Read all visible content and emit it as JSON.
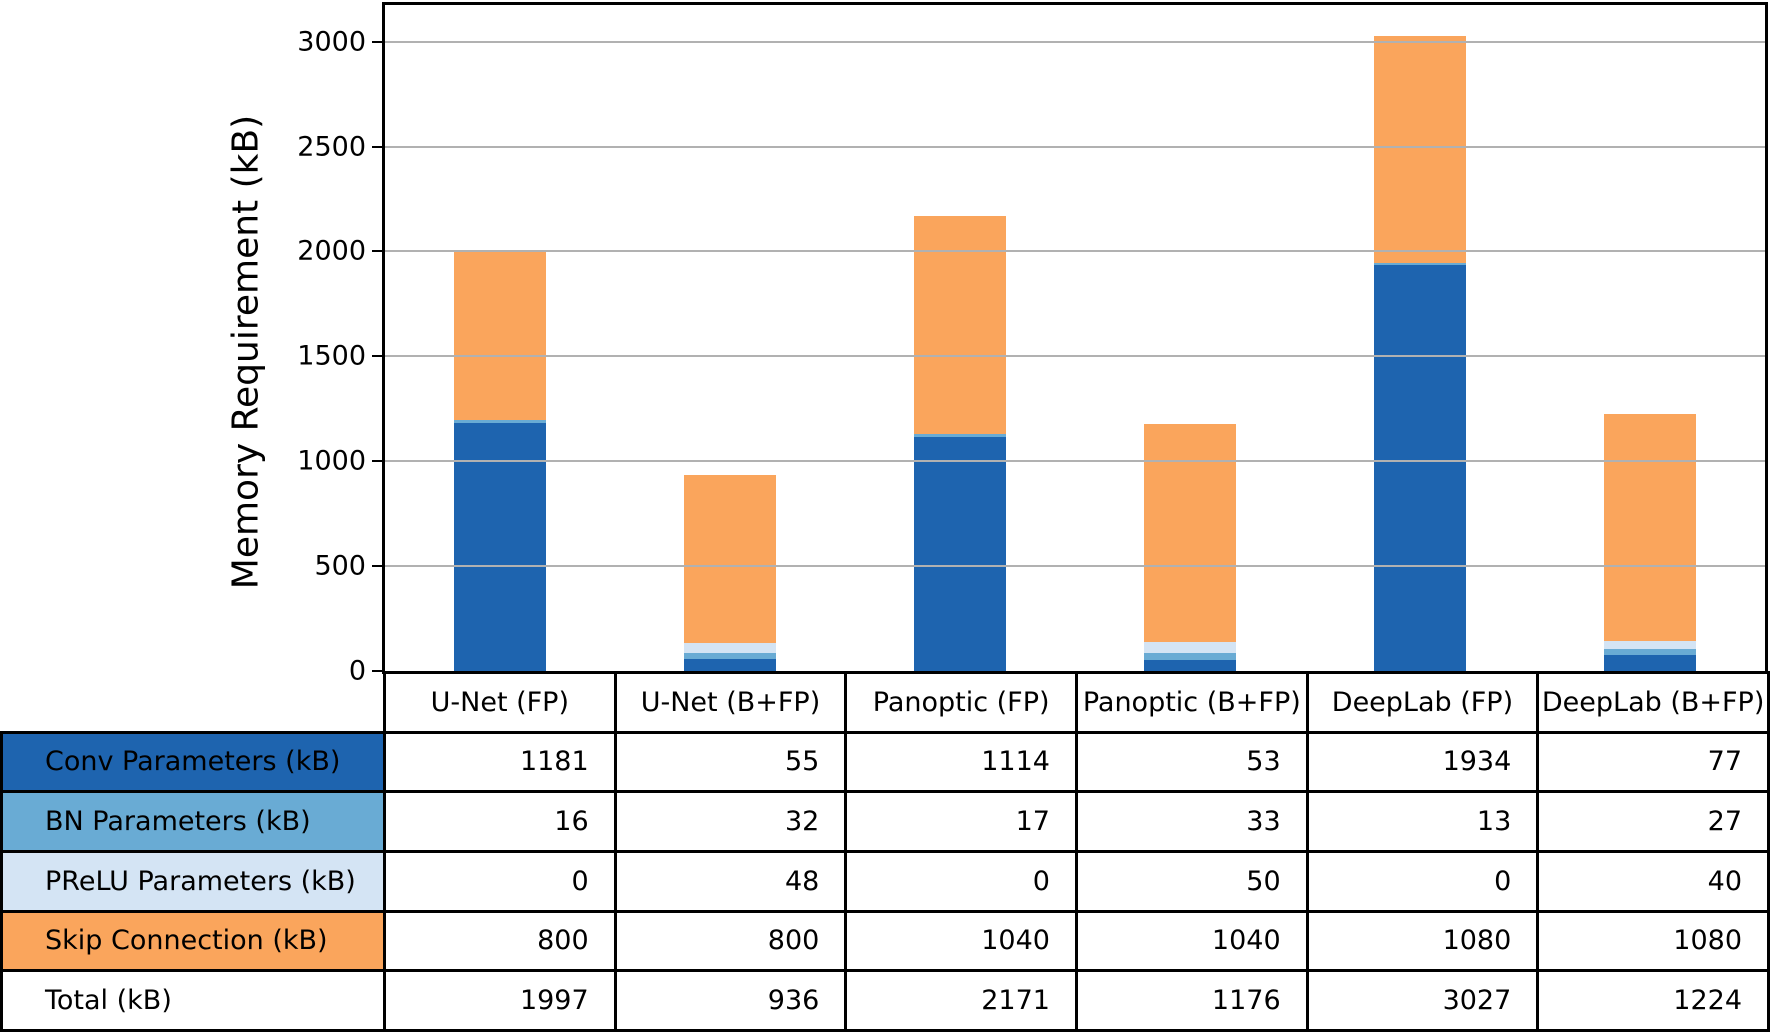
{
  "chart_data": {
    "type": "bar",
    "stacked": true,
    "title": "",
    "ylabel": "Memory Requirement (kB)",
    "xlabel": "",
    "categories": [
      "U-Net (FP)",
      "U-Net (B+FP)",
      "Panoptic (FP)",
      "Panoptic (B+FP)",
      "DeepLab (FP)",
      "DeepLab (B+FP)"
    ],
    "series": [
      {
        "name": "Conv Parameters (kB)",
        "color": "#1E64AF",
        "values": [
          1181,
          55,
          1114,
          53,
          1934,
          77
        ]
      },
      {
        "name": "BN Parameters (kB)",
        "color": "#69ABD4",
        "values": [
          16,
          32,
          17,
          33,
          13,
          27
        ]
      },
      {
        "name": "PReLU Parameters (kB)",
        "color": "#D4E4F4",
        "values": [
          0,
          48,
          0,
          50,
          0,
          40
        ]
      },
      {
        "name": "Skip Connection (kB)",
        "color": "#FAA55C",
        "values": [
          800,
          800,
          1040,
          1040,
          1080,
          1080
        ]
      }
    ],
    "totals": {
      "label": "Total (kB)",
      "values": [
        1997,
        936,
        2171,
        1176,
        3027,
        1224
      ]
    },
    "yticks": [
      0,
      500,
      1000,
      1500,
      2000,
      2500,
      3000
    ],
    "ylim": [
      0,
      3175
    ],
    "grid": true,
    "grid_color": "#B1B1B1",
    "axis_color": "#000000",
    "bar_width_fraction": 0.4,
    "legend_position": "table-row-labels"
  }
}
